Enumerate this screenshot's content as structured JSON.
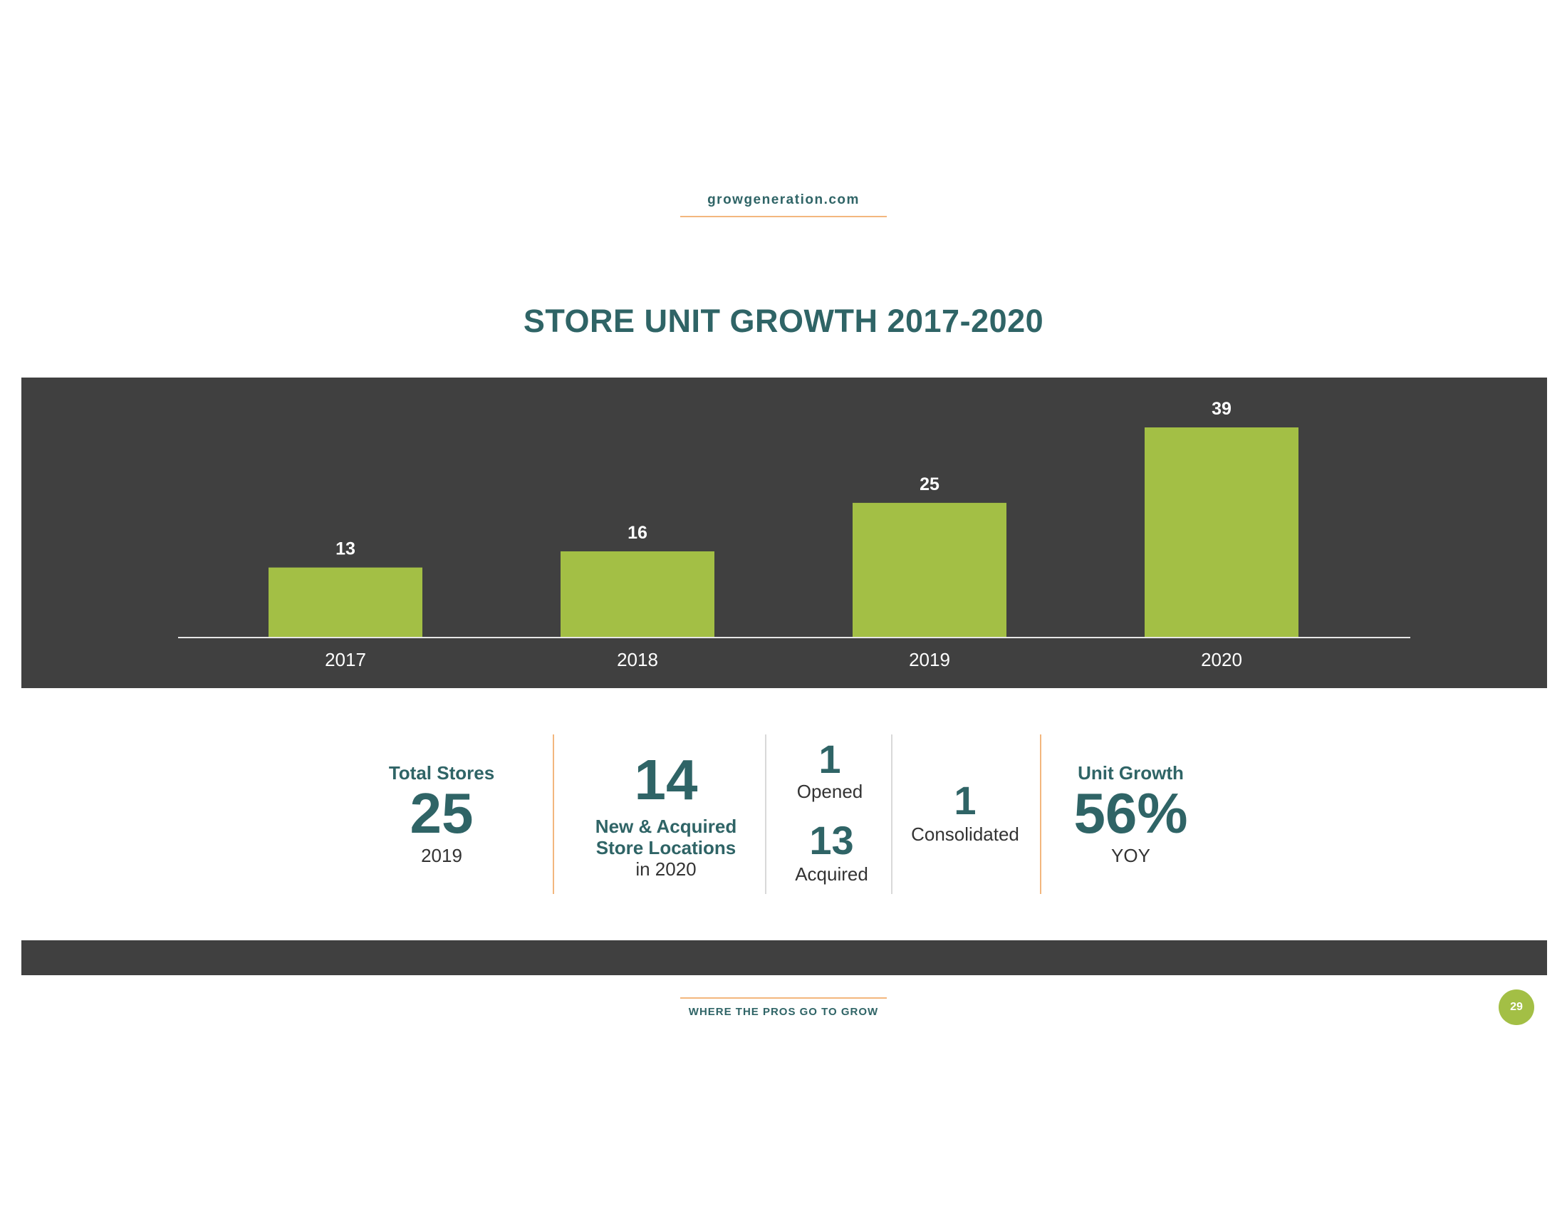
{
  "header": {
    "site": "growgeneration.com"
  },
  "title": "STORE UNIT GROWTH 2017-2020",
  "colors": {
    "teal": "#2f6466",
    "bar_green": "#a3bf45",
    "band": "#404040",
    "accent": "#f3b77e"
  },
  "chart_data": {
    "type": "bar",
    "categories": [
      "2017",
      "2018",
      "2019",
      "2020"
    ],
    "values": [
      13,
      16,
      25,
      39
    ],
    "title": "STORE UNIT GROWTH 2017-2020",
    "xlabel": "",
    "ylabel": "",
    "ylim": [
      0,
      39
    ],
    "grid": false,
    "data_labels": true
  },
  "stats": {
    "total": {
      "label": "Total Stores",
      "value": "25",
      "year": "2019"
    },
    "new": {
      "value": "14",
      "label_line1": "New & Acquired",
      "label_line2": "Store Locations",
      "sub": "in 2020"
    },
    "opened": {
      "value": "1",
      "label": "Opened"
    },
    "acquired": {
      "value": "13",
      "label": "Acquired"
    },
    "consolidated": {
      "value": "1",
      "label": "Consolidated"
    },
    "growth": {
      "label": "Unit Growth",
      "value": "56%",
      "sub": "YOY"
    }
  },
  "footer": {
    "tagline": "WHERE THE PROS GO TO GROW",
    "page": "29"
  }
}
